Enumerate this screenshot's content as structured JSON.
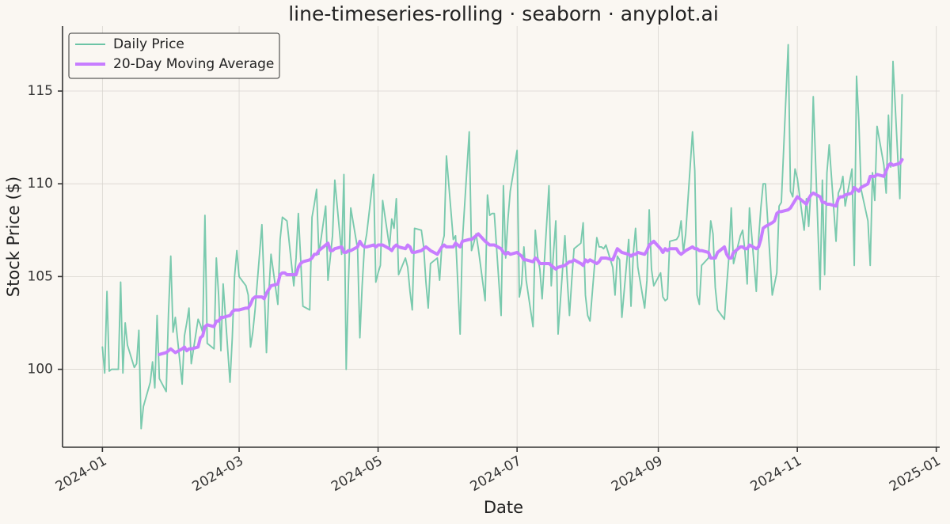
{
  "chart_data": {
    "type": "line",
    "title": "line-timeseries-rolling · seaborn · anyplot.ai",
    "x_label": "Date",
    "y_label": "Stock Price ($)",
    "x": [
      0,
      1,
      2,
      3,
      4,
      7,
      8,
      9,
      10,
      11,
      14,
      15,
      16,
      17,
      18,
      21,
      22,
      23,
      24,
      25,
      28,
      29,
      30,
      31,
      32,
      35,
      36,
      37,
      38,
      39,
      42,
      43,
      44,
      45,
      46,
      49,
      50,
      51,
      52,
      53,
      56,
      57,
      58,
      59,
      60,
      63,
      64,
      65,
      66,
      67,
      70,
      71,
      72,
      73,
      74,
      77,
      78,
      79,
      80,
      81,
      84,
      85,
      86,
      87,
      88,
      91,
      92,
      93,
      94,
      95,
      98,
      99,
      100,
      101,
      102,
      105,
      106,
      107,
      108,
      109,
      112,
      113,
      114,
      115,
      116,
      119,
      120,
      121,
      122,
      123,
      126,
      127,
      128,
      129,
      130,
      133,
      134,
      135,
      136,
      137,
      140,
      141,
      142,
      143,
      144,
      147,
      148,
      149,
      150,
      151,
      154,
      155,
      156,
      157,
      158,
      161,
      162,
      163,
      164,
      165,
      168,
      169,
      170,
      171,
      172,
      175,
      176,
      177,
      178,
      179,
      182,
      183,
      184,
      185,
      186,
      189,
      190,
      191,
      192,
      193,
      196,
      197,
      198,
      199,
      200,
      203,
      204,
      205,
      206,
      207,
      210,
      211,
      212,
      213,
      214,
      217,
      218,
      219,
      220,
      221,
      224,
      225,
      226,
      227,
      228,
      231,
      232,
      233,
      234,
      235,
      238,
      239,
      240,
      241,
      242,
      245,
      246,
      247,
      248,
      249,
      252,
      253,
      254,
      255,
      256,
      259,
      260,
      261,
      262,
      263,
      266,
      267,
      268,
      269,
      270,
      273,
      274,
      275,
      276,
      277,
      280,
      281,
      282,
      283,
      284,
      287,
      288,
      289,
      290,
      291,
      294,
      295,
      296,
      297,
      298,
      301,
      302,
      303,
      304,
      305,
      308,
      309,
      310,
      311,
      312,
      315,
      316,
      317,
      318,
      319,
      322,
      323,
      324,
      325,
      326,
      329,
      330,
      331,
      332,
      333,
      336,
      337,
      338,
      339,
      340,
      343,
      344,
      345,
      346,
      347,
      350,
      351
    ],
    "series": [
      {
        "name": "Daily Price",
        "color": "#6cc4a6",
        "values": [
          101.2,
          99.8,
          104.2,
          99.9,
          100.0,
          100.0,
          104.7,
          99.8,
          102.5,
          101.3,
          100.1,
          100.3,
          102.1,
          96.8,
          98.0,
          99.3,
          100.4,
          99.0,
          102.9,
          99.5,
          98.8,
          103.0,
          106.1,
          102.0,
          102.8,
          99.2,
          101.8,
          102.5,
          103.3,
          100.3,
          102.7,
          102.4,
          102.0,
          108.3,
          101.4,
          101.1,
          106.0,
          104.0,
          101.0,
          104.6,
          99.3,
          101.7,
          105.0,
          106.4,
          105.0,
          104.5,
          104.0,
          101.2,
          102.0,
          103.2,
          107.8,
          104.5,
          100.9,
          104.0,
          106.2,
          103.5,
          107.0,
          108.2,
          108.1,
          108.0,
          104.5,
          106.0,
          108.4,
          106.0,
          103.4,
          103.2,
          108.2,
          108.9,
          109.7,
          106.2,
          108.8,
          104.8,
          106.0,
          107.2,
          110.2,
          106.2,
          110.5,
          100.0,
          104.7,
          108.7,
          106.5,
          101.7,
          104.5,
          106.6,
          107.3,
          110.5,
          104.7,
          105.2,
          105.6,
          109.1,
          106.6,
          108.1,
          107.6,
          109.2,
          105.1,
          106.0,
          105.5,
          104.2,
          103.2,
          107.6,
          107.5,
          106.6,
          104.7,
          103.3,
          105.7,
          106.0,
          104.8,
          106.7,
          107.2,
          111.5,
          107.0,
          107.2,
          104.6,
          101.9,
          106.9,
          112.8,
          106.4,
          106.8,
          107.3,
          106.5,
          103.7,
          109.4,
          108.3,
          108.4,
          108.4,
          102.9,
          109.9,
          106.0,
          108.1,
          109.6,
          111.8,
          103.9,
          104.6,
          106.6,
          104.8,
          102.3,
          107.5,
          106.1,
          105.4,
          103.8,
          109.9,
          104.5,
          106.3,
          108.0,
          101.9,
          107.2,
          104.9,
          102.9,
          104.8,
          106.5,
          106.8,
          107.9,
          104.0,
          102.9,
          102.6,
          107.1,
          106.6,
          106.6,
          106.5,
          106.7,
          105.5,
          104.0,
          106.1,
          105.9,
          102.8,
          107.0,
          103.4,
          106.2,
          107.6,
          105.5,
          103.3,
          104.8,
          108.6,
          105.4,
          104.5,
          105.2,
          103.9,
          103.7,
          103.8,
          106.9,
          107.0,
          107.2,
          108.0,
          106.3,
          107.3,
          112.8,
          110.7,
          104.0,
          103.5,
          105.6,
          106.0,
          108.0,
          107.3,
          104.4,
          103.2,
          102.7,
          104.5,
          106.1,
          108.7,
          105.7,
          107.2,
          107.5,
          106.4,
          104.6,
          108.7,
          104.2,
          107.0,
          108.7,
          110.0,
          110.0,
          104.0,
          104.6,
          105.2,
          108.8,
          109.0,
          117.5,
          109.6,
          109.3,
          110.8,
          110.3,
          107.5,
          109.2,
          107.7,
          109.8,
          114.7,
          104.3,
          110.2,
          105.1,
          110.6,
          112.1,
          106.9,
          109.5,
          109.8,
          110.4,
          108.8,
          110.8,
          105.6,
          115.8,
          113.4,
          109.7,
          108.0,
          105.6,
          110.6,
          109.1,
          113.1,
          111.0,
          109.5,
          113.7,
          110.9,
          116.6,
          109.2,
          114.8
        ]
      },
      {
        "name": "20-Day Moving Average",
        "color": "#c77dff",
        "values": [
          null,
          null,
          null,
          null,
          null,
          null,
          null,
          null,
          null,
          null,
          null,
          null,
          null,
          null,
          null,
          null,
          null,
          null,
          null,
          100.8,
          100.9,
          101.0,
          101.1,
          101.0,
          100.9,
          101.1,
          101.2,
          101.0,
          101.1,
          101.1,
          101.2,
          101.7,
          101.8,
          102.3,
          102.4,
          102.3,
          102.6,
          102.6,
          102.8,
          102.8,
          102.9,
          103.1,
          103.2,
          103.2,
          103.2,
          103.3,
          103.3,
          103.5,
          103.8,
          103.9,
          103.9,
          103.8,
          104.1,
          104.3,
          104.5,
          104.6,
          105.1,
          105.2,
          105.2,
          105.1,
          105.1,
          105.1,
          105.5,
          105.7,
          105.8,
          105.9,
          106.0,
          106.2,
          106.2,
          106.4,
          106.7,
          106.8,
          106.4,
          106.4,
          106.5,
          106.6,
          106.3,
          106.3,
          106.4,
          106.4,
          106.6,
          106.9,
          106.7,
          106.6,
          106.6,
          106.7,
          106.6,
          106.7,
          106.7,
          106.7,
          106.5,
          106.4,
          106.6,
          106.7,
          106.6,
          106.5,
          106.7,
          106.6,
          106.3,
          106.3,
          106.4,
          106.5,
          106.6,
          106.5,
          106.4,
          106.2,
          106.4,
          106.6,
          106.7,
          106.6,
          106.6,
          106.8,
          106.7,
          106.6,
          106.9,
          107.0,
          107.0,
          107.1,
          107.2,
          107.3,
          106.9,
          106.8,
          106.7,
          106.7,
          106.7,
          106.5,
          106.3,
          106.2,
          106.3,
          106.2,
          106.3,
          106.2,
          106.1,
          105.9,
          105.9,
          105.8,
          106.0,
          105.9,
          105.7,
          105.7,
          105.7,
          105.6,
          105.5,
          105.4,
          105.5,
          105.6,
          105.7,
          105.8,
          105.8,
          105.9,
          105.7,
          105.6,
          105.9,
          105.8,
          105.9,
          105.7,
          105.8,
          106.0,
          106.0,
          106.0,
          105.9,
          106.2,
          106.5,
          106.4,
          106.3,
          106.2,
          106.1,
          106.2,
          106.2,
          106.3,
          106.2,
          106.4,
          106.7,
          106.8,
          106.9,
          106.5,
          106.3,
          106.5,
          106.4,
          106.5,
          106.5,
          106.3,
          106.2,
          106.3,
          106.4,
          106.6,
          106.5,
          106.5,
          106.4,
          106.4,
          106.3,
          106.0,
          106.0,
          106.0,
          106.3,
          106.6,
          106.2,
          106.0,
          106.0,
          106.3,
          106.6,
          106.6,
          106.5,
          106.5,
          106.7,
          106.5,
          106.6,
          107.0,
          107.6,
          107.7,
          107.9,
          108.0,
          108.4,
          108.5,
          108.5,
          108.6,
          108.7,
          108.9,
          109.1,
          109.3,
          109.0,
          108.9,
          109.2,
          109.4,
          109.5,
          109.3,
          109.0,
          109.0,
          108.9,
          108.9,
          108.8,
          109.2,
          109.3,
          109.3,
          109.4,
          109.5,
          109.8,
          109.7,
          109.6,
          109.8,
          110.0,
          110.4,
          110.4,
          110.4,
          110.5,
          110.4,
          110.7,
          111.0,
          111.1,
          111.0,
          111.1,
          111.3
        ]
      }
    ],
    "xlim": [
      -17.5,
      367.5
    ],
    "ylim": [
      95.8,
      118.5
    ],
    "xticks": [
      {
        "value": 0,
        "label": "2024-01"
      },
      {
        "value": 60,
        "label": "2024-03"
      },
      {
        "value": 121,
        "label": "2024-05"
      },
      {
        "value": 182,
        "label": "2024-07"
      },
      {
        "value": 244,
        "label": "2024-09"
      },
      {
        "value": 305,
        "label": "2024-11"
      },
      {
        "value": 366,
        "label": "2025-01"
      }
    ],
    "yticks": [
      100,
      105,
      110,
      115
    ],
    "grid": true,
    "legend": "upper left"
  }
}
